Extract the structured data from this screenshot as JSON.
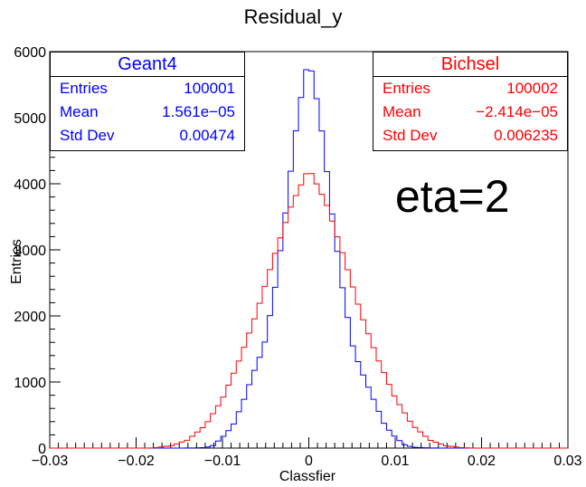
{
  "chart_data": {
    "type": "line",
    "title": "Residual_y",
    "xlabel": "Classfier",
    "ylabel": "Entries",
    "xlim": [
      -0.03,
      0.03
    ],
    "ylim": [
      0,
      6000
    ],
    "x_ticks": [
      "−0.03",
      "−0.02",
      "−0.01",
      "0",
      "0.01",
      "0.02",
      "0.03"
    ],
    "y_ticks": [
      "0",
      "1000",
      "2000",
      "3000",
      "4000",
      "5000",
      "6000"
    ],
    "annotation": "eta=2",
    "series": [
      {
        "name": "Geant4",
        "color": "#0000ff",
        "x": [
          -0.0124,
          -0.0112,
          -0.01,
          -0.0088,
          -0.0076,
          -0.0064,
          -0.0052,
          -0.004,
          -0.0028,
          -0.0016,
          -0.0004,
          0.0,
          0.0004,
          0.0016,
          0.0028,
          0.004,
          0.0052,
          0.0064,
          0.0076,
          0.0088,
          0.01,
          0.0112,
          0.0124
        ],
        "values": [
          5,
          25,
          160,
          330,
          700,
          1150,
          1550,
          2350,
          3450,
          4700,
          5700,
          5720,
          5680,
          4720,
          3450,
          2350,
          1480,
          1070,
          700,
          340,
          165,
          40,
          10
        ]
      },
      {
        "name": "Bichsel",
        "color": "#ff0000",
        "x": [
          -0.016,
          -0.014,
          -0.012,
          -0.01,
          -0.008,
          -0.006,
          -0.004,
          -0.002,
          0.0,
          0.002,
          0.004,
          0.006,
          0.008,
          0.01,
          0.012,
          0.014,
          0.016
        ],
        "values": [
          30,
          120,
          340,
          750,
          1350,
          2050,
          2900,
          3700,
          4250,
          3700,
          2900,
          2050,
          1360,
          760,
          340,
          120,
          30
        ]
      }
    ],
    "stats": [
      {
        "name": "Geant4",
        "color": "#0000ff",
        "rows": [
          {
            "label": "Entries",
            "value": "100001"
          },
          {
            "label": "Mean",
            "value": "1.561e−05"
          },
          {
            "label": "Std Dev",
            "value": "0.00474"
          }
        ]
      },
      {
        "name": "Bichsel",
        "color": "#ff0000",
        "rows": [
          {
            "label": "Entries",
            "value": "100002"
          },
          {
            "label": "Mean",
            "value": "−2.414e−05"
          },
          {
            "label": "Std Dev",
            "value": "0.006235"
          }
        ]
      }
    ]
  }
}
